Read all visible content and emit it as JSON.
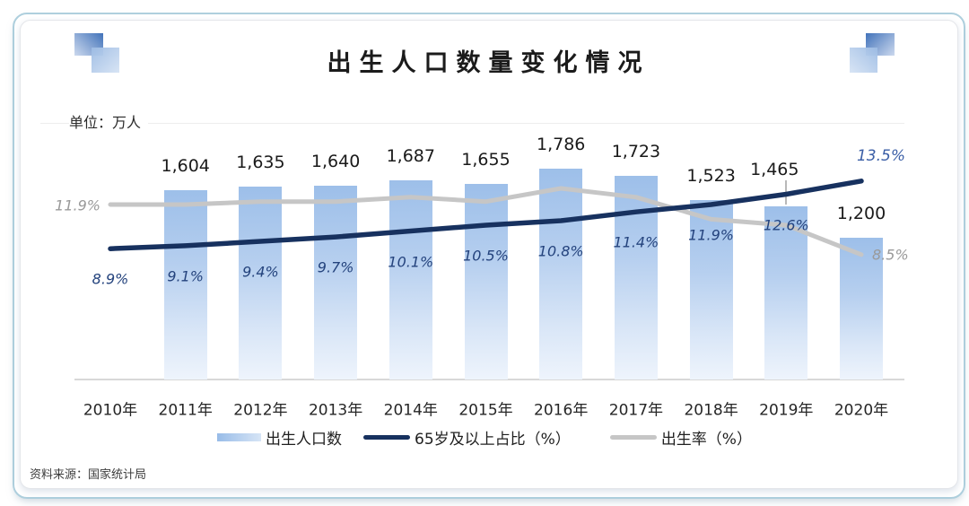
{
  "chart_data": {
    "type": "combo",
    "title": "出生人口数量变化情况",
    "unit_note": "单位：万人",
    "categories": [
      "2010年",
      "2011年",
      "2012年",
      "2013年",
      "2014年",
      "2015年",
      "2016年",
      "2017年",
      "2018年",
      "2019年",
      "2020年"
    ],
    "series": [
      {
        "name": "出生人口数",
        "type": "bar",
        "unit": "万人",
        "values": [
          null,
          1604,
          1635,
          1640,
          1687,
          1655,
          1786,
          1723,
          1523,
          1465,
          1200
        ],
        "display_labels": [
          "",
          "1,604",
          "1,635",
          "1,640",
          "1,687",
          "1,655",
          "1,786",
          "1,723",
          "1,523",
          "1,465",
          "1,200"
        ]
      },
      {
        "name": "65岁及以上占比（%）",
        "type": "line",
        "values": [
          8.9,
          9.1,
          9.4,
          9.7,
          10.1,
          10.5,
          10.8,
          11.4,
          11.9,
          12.6,
          13.5
        ],
        "display_labels": [
          "8.9%",
          "9.1%",
          "9.4%",
          "9.7%",
          "10.1%",
          "10.5%",
          "10.8%",
          "11.4%",
          "11.9%",
          "12.6%",
          "13.5%"
        ]
      },
      {
        "name": "出生率（%）",
        "type": "line",
        "values": [
          11.9,
          11.9,
          12.1,
          12.1,
          12.4,
          12.1,
          13.0,
          12.4,
          10.9,
          10.5,
          8.5
        ],
        "display_labels": [
          "11.9%",
          "",
          "",
          "",
          "",
          "",
          "",
          "",
          "",
          "",
          "8.5%"
        ]
      }
    ],
    "ylim_bar": [
      0,
      2160
    ],
    "grid": false,
    "legend_position": "bottom",
    "callout": {
      "category": "2019年",
      "note": "value label raised with leader line"
    }
  },
  "colors": {
    "elderly_line": "#17315f",
    "elderly_label": "#24437d",
    "elderly_label_end": "#3a5ea6",
    "birthrate_line": "#c6c6c6",
    "birthrate_label": "#9a9a9a",
    "bar_top": "#9dbfe9",
    "bar_bottom": "#eef4fc",
    "axis": "#d8d8d8",
    "accent_border": "#aecfdd"
  },
  "footer": {
    "source": "资料来源：国家统计局"
  }
}
